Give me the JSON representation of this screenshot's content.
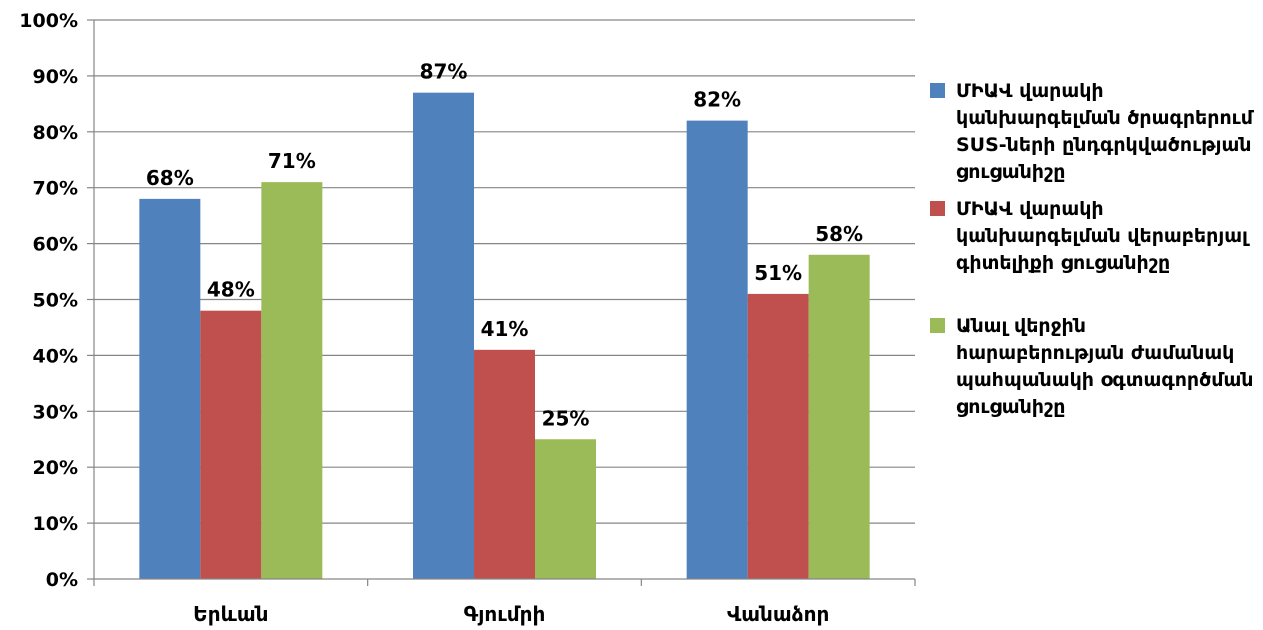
{
  "chart_data": {
    "type": "bar",
    "categories": [
      "Երևան",
      "Գյումրի",
      "Վանաձոր"
    ],
    "series": [
      {
        "name": "ՄԻԱՎ վարակի կանխարգելման ծրագրերում SUS-ների ընդգրկվածության ցուցանիշը",
        "values": [
          68,
          87,
          82
        ],
        "labels": [
          "68%",
          "87%",
          "82%"
        ],
        "color": "#4F81BD"
      },
      {
        "name": "ՄԻԱՎ վարակի կանխարգելման վերաբերյալ գիտելիքի ցուցանիշը",
        "values": [
          48,
          41,
          51
        ],
        "labels": [
          "48%",
          "41%",
          "51%"
        ],
        "color": "#C0504D"
      },
      {
        "name": "Անալ վերջին հարաբերության ժամանակ պահպանակի օգտագործման ցուցանիշը",
        "values": [
          71,
          25,
          58
        ],
        "labels": [
          "71%",
          "25%",
          "58%"
        ],
        "color": "#9BBB59"
      }
    ],
    "yticks": [
      "0%",
      "10%",
      "20%",
      "30%",
      "40%",
      "50%",
      "60%",
      "70%",
      "80%",
      "90%",
      "100%"
    ],
    "ylim": [
      0,
      100
    ],
    "grid": true,
    "legend": "right",
    "title": "",
    "xlabel": "",
    "ylabel": ""
  }
}
